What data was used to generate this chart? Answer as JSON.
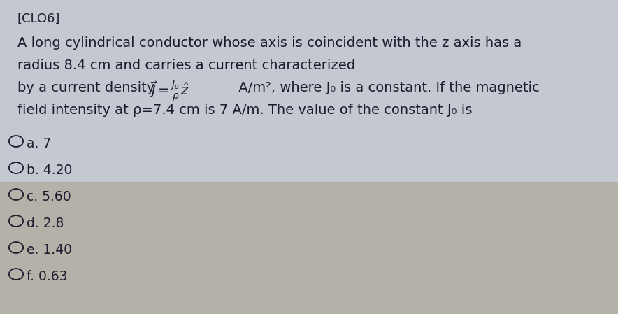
{
  "background_color": "#b8b4ac",
  "top_bg": "#c9cdd4",
  "tag": "[CLO6]",
  "line1": "A long cylindrical conductor whose axis is coincident with the z axis has a",
  "line2": "radius 8.4 cm and carries a current characterized",
  "line3_pre": "by a current density ",
  "line3_mid": "$\\vec{J} = \\frac{J_o}{\\rho}\\hat{z}$",
  "line3_post": " A/m², where J₀ is a constant. If the magnetic",
  "line4": "field intensity at ρ=7.4 cm is 7 A/m. The value of the constant J₀ is",
  "options": [
    "a. 7",
    "b. 4.20",
    "c. 5.60",
    "d. 2.8",
    "e. 1.40",
    "f. 0.63"
  ],
  "text_color": "#1c1c2e",
  "body_fontsize": 14,
  "opt_fontsize": 13.5
}
